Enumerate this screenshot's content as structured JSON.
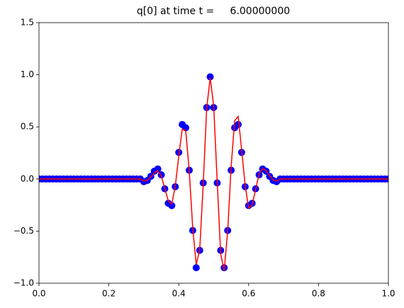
{
  "chart_data": {
    "type": "scatter",
    "title": "q[0] at time t =     6.00000000",
    "x": [
      0.0,
      0.01,
      0.02,
      0.03,
      0.04,
      0.05,
      0.06,
      0.07,
      0.08,
      0.09,
      0.1,
      0.11,
      0.12,
      0.13,
      0.14,
      0.15,
      0.16,
      0.17,
      0.18,
      0.19,
      0.2,
      0.21,
      0.22,
      0.23,
      0.24,
      0.25,
      0.26,
      0.27,
      0.28,
      0.29,
      0.3,
      0.31,
      0.32,
      0.33,
      0.34,
      0.35,
      0.36,
      0.37,
      0.38,
      0.39,
      0.4,
      0.41,
      0.42,
      0.43,
      0.44,
      0.45,
      0.46,
      0.47,
      0.48,
      0.49,
      0.5,
      0.51,
      0.52,
      0.53,
      0.54,
      0.55,
      0.56,
      0.57,
      0.58,
      0.59,
      0.6,
      0.61,
      0.62,
      0.63,
      0.64,
      0.65,
      0.66,
      0.67,
      0.68,
      0.69,
      0.7,
      0.71,
      0.72,
      0.73,
      0.74,
      0.75,
      0.76,
      0.77,
      0.78,
      0.79,
      0.8,
      0.81,
      0.82,
      0.83,
      0.84,
      0.85,
      0.86,
      0.87,
      0.88,
      0.89,
      0.9,
      0.91,
      0.92,
      0.93,
      0.94,
      0.95,
      0.96,
      0.97,
      0.98,
      0.99,
      1.0
    ],
    "series": [
      {
        "type": "scatter",
        "color": "#0000ff",
        "values": [
          0,
          0,
          0,
          0,
          0,
          0,
          0,
          0,
          0,
          0,
          0,
          0,
          0,
          0,
          0,
          0,
          0,
          0,
          0,
          0,
          0,
          0,
          0,
          0,
          0,
          0,
          0,
          0,
          0,
          0,
          -0.026,
          -0.014,
          0.025,
          0.075,
          0.096,
          0.04,
          -0.094,
          -0.233,
          -0.255,
          -0.074,
          0.255,
          0.523,
          0.492,
          0.084,
          -0.494,
          -0.851,
          -0.685,
          -0.038,
          0.686,
          0.98,
          0.686,
          -0.038,
          -0.685,
          -0.851,
          -0.494,
          0.084,
          0.492,
          0.523,
          0.255,
          -0.074,
          -0.255,
          -0.233,
          -0.094,
          0.04,
          0.096,
          0.075,
          0.025,
          -0.014,
          -0.026,
          0,
          0,
          0,
          0,
          0,
          0,
          0,
          0,
          0,
          0,
          0,
          0,
          0,
          0,
          0,
          0,
          0,
          0,
          0,
          0,
          0,
          0,
          0,
          0,
          0,
          0,
          0,
          0,
          0,
          0,
          0,
          0
        ]
      },
      {
        "type": "line",
        "color": "#ff0000",
        "values": [
          0,
          0,
          0,
          0,
          0,
          0,
          0,
          0,
          0,
          0,
          0,
          0,
          0,
          0,
          0,
          0,
          0,
          0,
          0,
          0,
          0,
          0,
          0,
          0,
          0,
          0,
          0,
          0,
          0,
          0,
          -0.02,
          -0.01,
          0.02,
          0.06,
          0.08,
          0.03,
          -0.09,
          -0.21,
          -0.24,
          -0.07,
          0.22,
          0.48,
          0.46,
          0.08,
          -0.47,
          -0.82,
          -0.68,
          -0.05,
          0.68,
          0.97,
          0.7,
          -0.02,
          -0.72,
          -0.88,
          -0.5,
          0.12,
          0.56,
          0.6,
          0.28,
          -0.06,
          -0.28,
          -0.25,
          -0.1,
          0.05,
          0.1,
          0.08,
          0.03,
          -0.01,
          -0.02,
          0,
          0,
          0,
          0,
          0,
          0,
          0,
          0,
          0,
          0,
          0,
          0,
          0,
          0,
          0,
          0,
          0,
          0,
          0,
          0,
          0,
          0,
          0,
          0,
          0,
          0,
          0,
          0,
          0,
          0,
          0,
          0
        ]
      }
    ],
    "xlim": [
      0,
      1
    ],
    "ylim": [
      -1,
      1.5
    ],
    "xticks": [
      {
        "value": 0,
        "label": "0.0"
      },
      {
        "value": 0.2,
        "label": "0.2"
      },
      {
        "value": 0.4,
        "label": "0.4"
      },
      {
        "value": 0.6,
        "label": "0.6"
      },
      {
        "value": 0.8,
        "label": "0.8"
      },
      {
        "value": 1,
        "label": "1.0"
      }
    ],
    "yticks": [
      {
        "value": -1,
        "label": "−1.0"
      },
      {
        "value": -0.5,
        "label": "−0.5"
      },
      {
        "value": 0,
        "label": "0.0"
      },
      {
        "value": 0.5,
        "label": "0.5"
      },
      {
        "value": 1,
        "label": "1.0"
      },
      {
        "value": 1.5,
        "label": "1.5"
      }
    ],
    "grid": false
  }
}
